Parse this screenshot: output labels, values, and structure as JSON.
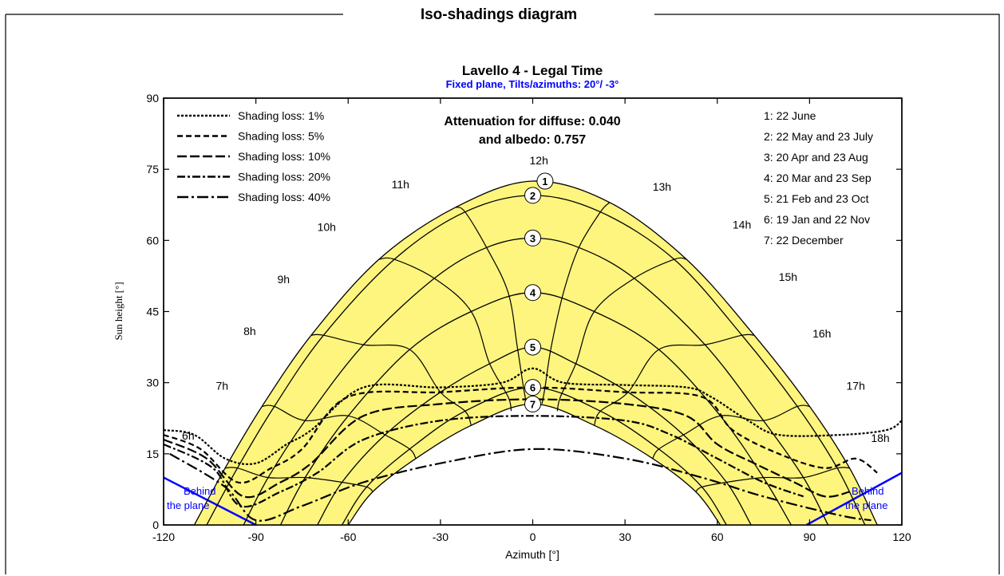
{
  "panel": {
    "title": "Iso-shadings diagram"
  },
  "chart_data": {
    "type": "line",
    "title": "Lavello 4 - Legal Time",
    "subtitle": "Fixed plane, Tilts/azimuths: 20°/ -3°",
    "xlabel": "Azimuth [°]",
    "ylabel": "Sun height [°]",
    "xlim": [
      -120,
      120
    ],
    "ylim": [
      0,
      90
    ],
    "xticks": [
      -120,
      -90,
      -60,
      -30,
      0,
      30,
      60,
      90,
      120
    ],
    "yticks": [
      0,
      15,
      30,
      45,
      60,
      75,
      90
    ],
    "xtick_labels": [
      "-120",
      "-90",
      "-60",
      "-30",
      "0",
      "30",
      "60",
      "90",
      "120"
    ],
    "ytick_labels": [
      "0",
      "15",
      "30",
      "45",
      "60",
      "75",
      "90"
    ],
    "grid": false,
    "attenuation_text": [
      "Attenuation for diffuse: 0.040",
      "and albedo: 0.757"
    ],
    "behind_plane_label": [
      "Behind",
      "the plane"
    ],
    "colors": {
      "fill": "#fdf57e",
      "subtitle": "#0000ff",
      "behind": "#0000ff",
      "curve": "#000000"
    },
    "legend_shading": [
      {
        "label": "Shading loss: 1%",
        "dash": "3,2"
      },
      {
        "label": "Shading loss: 5%",
        "dash": "7,4"
      },
      {
        "label": "Shading loss: 10%",
        "dash": "12,4"
      },
      {
        "label": "Shading loss: 20%",
        "dash": "10,3,3,3"
      },
      {
        "label": "Shading loss: 40%",
        "dash": "14,4,3,4"
      }
    ],
    "legend_dates": [
      "1: 22 June",
      "2: 22 May and 23 July",
      "3: 20 Apr and 23 Aug",
      "4: 20 Mar and 23 Sep",
      "5: 21 Feb and 23 Oct",
      "6: 19 Jan and 22 Nov",
      "7: 22 December"
    ],
    "date_markers": [
      {
        "label": "1",
        "x": 4,
        "y": 72.5
      },
      {
        "label": "2",
        "x": 0,
        "y": 69.5
      },
      {
        "label": "3",
        "x": 0,
        "y": 60.5
      },
      {
        "label": "4",
        "x": 0,
        "y": 49
      },
      {
        "label": "5",
        "x": 0,
        "y": 37.5
      },
      {
        "label": "6",
        "x": 0,
        "y": 29
      },
      {
        "label": "7",
        "x": 0,
        "y": 25.5
      }
    ],
    "hour_labels": [
      {
        "label": "6h",
        "x": -112,
        "y": 18
      },
      {
        "label": "7h",
        "x": -101,
        "y": 28.5
      },
      {
        "label": "8h",
        "x": -92,
        "y": 40
      },
      {
        "label": "9h",
        "x": -81,
        "y": 51
      },
      {
        "label": "10h",
        "x": -67,
        "y": 62
      },
      {
        "label": "11h",
        "x": -43,
        "y": 71
      },
      {
        "label": "12h",
        "x": 2,
        "y": 76
      },
      {
        "label": "13h",
        "x": 42,
        "y": 70.5
      },
      {
        "label": "14h",
        "x": 68,
        "y": 62.5
      },
      {
        "label": "15h",
        "x": 83,
        "y": 51.5
      },
      {
        "label": "16h",
        "x": 94,
        "y": 39.5
      },
      {
        "label": "17h",
        "x": 105,
        "y": 28.5
      },
      {
        "label": "18h",
        "x": 113,
        "y": 17.5
      }
    ],
    "date_curves": [
      {
        "name": "1",
        "pts": [
          [
            -110,
            0
          ],
          [
            -100,
            12
          ],
          [
            -88,
            25
          ],
          [
            -72,
            40
          ],
          [
            -50,
            56
          ],
          [
            -25,
            67
          ],
          [
            0,
            72.5
          ],
          [
            25,
            68
          ],
          [
            50,
            56
          ],
          [
            72,
            40
          ],
          [
            90,
            25
          ],
          [
            103,
            12
          ],
          [
            112,
            0
          ]
        ]
      },
      {
        "name": "2",
        "pts": [
          [
            -106,
            0
          ],
          [
            -96,
            12
          ],
          [
            -84,
            25
          ],
          [
            -68,
            40
          ],
          [
            -45,
            56
          ],
          [
            -22,
            66
          ],
          [
            0,
            69.5
          ],
          [
            22,
            66
          ],
          [
            46,
            56
          ],
          [
            68,
            40
          ],
          [
            86,
            25
          ],
          [
            99,
            12
          ],
          [
            108,
            0
          ]
        ]
      },
      {
        "name": "3",
        "pts": [
          [
            -94,
            0
          ],
          [
            -86,
            10
          ],
          [
            -74,
            22
          ],
          [
            -55,
            38
          ],
          [
            -32,
            52
          ],
          [
            -15,
            58.5
          ],
          [
            0,
            60.5
          ],
          [
            15,
            58.5
          ],
          [
            33,
            52
          ],
          [
            56,
            38
          ],
          [
            75,
            22
          ],
          [
            88,
            10
          ],
          [
            96,
            0
          ]
        ]
      },
      {
        "name": "4",
        "pts": [
          [
            -82,
            0
          ],
          [
            -74,
            10
          ],
          [
            -60,
            23
          ],
          [
            -40,
            37
          ],
          [
            -20,
            45
          ],
          [
            0,
            49
          ],
          [
            20,
            45
          ],
          [
            41,
            37
          ],
          [
            61,
            23
          ],
          [
            75,
            10
          ],
          [
            84,
            0
          ]
        ]
      },
      {
        "name": "5",
        "pts": [
          [
            -70,
            0
          ],
          [
            -62,
            9
          ],
          [
            -48,
            19
          ],
          [
            -30,
            28
          ],
          [
            -14,
            34
          ],
          [
            0,
            37.5
          ],
          [
            14,
            34
          ],
          [
            31,
            28
          ],
          [
            49,
            19
          ],
          [
            63,
            9
          ],
          [
            71,
            0
          ]
        ]
      },
      {
        "name": "6",
        "pts": [
          [
            -62,
            0
          ],
          [
            -54,
            8
          ],
          [
            -40,
            16
          ],
          [
            -22,
            24
          ],
          [
            0,
            29
          ],
          [
            22,
            24
          ],
          [
            41,
            16
          ],
          [
            55,
            8
          ],
          [
            63,
            0
          ]
        ]
      },
      {
        "name": "7",
        "pts": [
          [
            -60,
            0
          ],
          [
            -52,
            7
          ],
          [
            -38,
            14
          ],
          [
            -20,
            21
          ],
          [
            0,
            25.5
          ],
          [
            20,
            21
          ],
          [
            39,
            14
          ],
          [
            53,
            7
          ],
          [
            61,
            0
          ]
        ]
      }
    ],
    "hour_curves": [
      {
        "name": "7h",
        "pts": [
          [
            -100,
            12
          ],
          [
            -96,
            12
          ],
          [
            -86,
            10
          ],
          [
            -74,
            10
          ],
          [
            -62,
            9
          ],
          [
            -54,
            8
          ],
          [
            -52,
            7
          ]
        ]
      },
      {
        "name": "8h",
        "pts": [
          [
            -88,
            25
          ],
          [
            -84,
            25
          ],
          [
            -74,
            22
          ],
          [
            -60,
            23
          ],
          [
            -48,
            19
          ],
          [
            -40,
            16
          ],
          [
            -38,
            14
          ]
        ]
      },
      {
        "name": "9h",
        "pts": [
          [
            -72,
            40
          ],
          [
            -68,
            40
          ],
          [
            -55,
            38
          ],
          [
            -40,
            37
          ],
          [
            -30,
            28
          ],
          [
            -22,
            24
          ],
          [
            -20,
            21
          ]
        ]
      },
      {
        "name": "10h",
        "pts": [
          [
            -50,
            56
          ],
          [
            -45,
            56
          ],
          [
            -32,
            52
          ],
          [
            -20,
            45
          ],
          [
            -14,
            34
          ],
          [
            -8,
            27
          ],
          [
            -7,
            24
          ]
        ]
      },
      {
        "name": "11h",
        "pts": [
          [
            -25,
            67
          ],
          [
            -22,
            66
          ],
          [
            -15,
            58.5
          ],
          [
            -8,
            49
          ],
          [
            -5,
            37.5
          ],
          [
            -3,
            29
          ],
          [
            -2,
            25.5
          ]
        ]
      },
      {
        "name": "13h",
        "pts": [
          [
            25,
            68
          ],
          [
            22,
            66
          ],
          [
            15,
            58.5
          ],
          [
            10,
            49
          ],
          [
            6,
            37.5
          ],
          [
            4,
            29
          ],
          [
            3,
            25.5
          ]
        ]
      },
      {
        "name": "14h",
        "pts": [
          [
            50,
            56
          ],
          [
            46,
            56
          ],
          [
            33,
            52
          ],
          [
            20,
            45
          ],
          [
            14,
            34
          ],
          [
            9,
            27
          ],
          [
            8,
            24
          ]
        ]
      },
      {
        "name": "15h",
        "pts": [
          [
            72,
            40
          ],
          [
            68,
            40
          ],
          [
            56,
            38
          ],
          [
            41,
            37
          ],
          [
            31,
            28
          ],
          [
            22,
            24
          ],
          [
            20,
            21
          ]
        ]
      },
      {
        "name": "16h",
        "pts": [
          [
            90,
            25
          ],
          [
            86,
            25
          ],
          [
            75,
            22
          ],
          [
            61,
            23
          ],
          [
            49,
            19
          ],
          [
            41,
            16
          ],
          [
            39,
            14
          ]
        ]
      },
      {
        "name": "17h",
        "pts": [
          [
            103,
            12
          ],
          [
            99,
            12
          ],
          [
            88,
            10
          ],
          [
            75,
            10
          ],
          [
            63,
            9
          ],
          [
            55,
            8
          ],
          [
            53,
            7
          ]
        ]
      }
    ],
    "shading_curves": [
      {
        "name": "Shading loss: 1%",
        "dash": "3,2",
        "pts": [
          [
            -120,
            20
          ],
          [
            -110,
            19
          ],
          [
            -100,
            14
          ],
          [
            -90,
            13
          ],
          [
            -80,
            17
          ],
          [
            -72,
            20
          ],
          [
            -55,
            29
          ],
          [
            -30,
            29
          ],
          [
            -10,
            30
          ],
          [
            0,
            33
          ],
          [
            10,
            30
          ],
          [
            30,
            29.5
          ],
          [
            50,
            29
          ],
          [
            58,
            27
          ],
          [
            70,
            22
          ],
          [
            80,
            19
          ],
          [
            100,
            19
          ],
          [
            115,
            20
          ],
          [
            120,
            22
          ]
        ]
      },
      {
        "name": "Shading loss: 5%",
        "dash": "7,4",
        "pts": [
          [
            -120,
            19
          ],
          [
            -108,
            16
          ],
          [
            -96,
            9
          ],
          [
            -85,
            12
          ],
          [
            -75,
            16
          ],
          [
            -60,
            27
          ],
          [
            -30,
            28
          ],
          [
            0,
            29
          ],
          [
            30,
            28
          ],
          [
            55,
            27
          ],
          [
            65,
            20
          ],
          [
            80,
            15
          ],
          [
            95,
            12
          ],
          [
            105,
            14
          ],
          [
            112,
            11
          ]
        ]
      },
      {
        "name": "Shading loss: 10%",
        "dash": "12,4",
        "pts": [
          [
            -120,
            18
          ],
          [
            -106,
            14
          ],
          [
            -94,
            6
          ],
          [
            -82,
            9
          ],
          [
            -72,
            13
          ],
          [
            -55,
            23
          ],
          [
            -30,
            25.5
          ],
          [
            0,
            26.5
          ],
          [
            30,
            25.5
          ],
          [
            50,
            23
          ],
          [
            60,
            17
          ],
          [
            72,
            13
          ],
          [
            85,
            9
          ],
          [
            95,
            6
          ],
          [
            103,
            7
          ]
        ]
      },
      {
        "name": "Shading loss: 20%",
        "dash": "10,3,3,3",
        "pts": [
          [
            -120,
            17
          ],
          [
            -104,
            12
          ],
          [
            -95,
            4
          ],
          [
            -82,
            7
          ],
          [
            -70,
            11
          ],
          [
            -55,
            18
          ],
          [
            -30,
            22
          ],
          [
            0,
            23
          ],
          [
            30,
            22
          ],
          [
            45,
            19
          ],
          [
            60,
            14
          ],
          [
            75,
            9
          ],
          [
            88,
            6
          ]
        ]
      },
      {
        "name": "Shading loss: 40%",
        "dash": "14,4,3,4",
        "pts": [
          [
            -118,
            15
          ],
          [
            -100,
            8
          ],
          [
            -90,
            1
          ],
          [
            -75,
            4
          ],
          [
            -55,
            9
          ],
          [
            -30,
            13
          ],
          [
            0,
            16
          ],
          [
            30,
            14
          ],
          [
            55,
            10
          ],
          [
            75,
            6
          ],
          [
            100,
            2
          ],
          [
            110,
            1
          ]
        ]
      }
    ]
  }
}
